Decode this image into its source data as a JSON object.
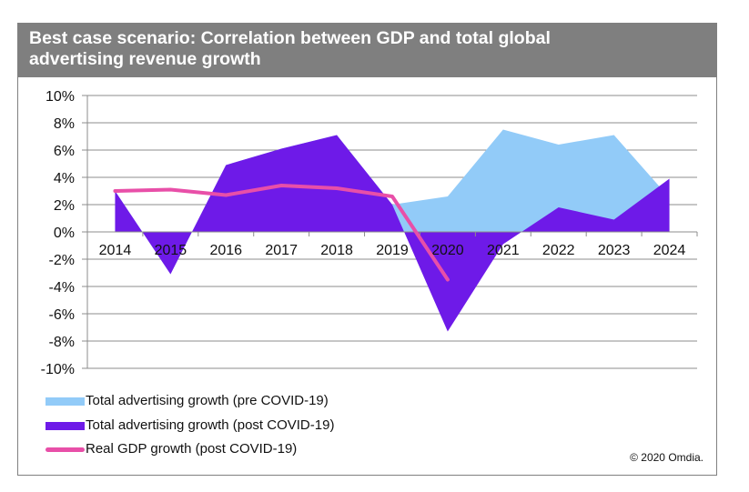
{
  "header": {
    "title_line1": "Best case scenario: Correlation between GDP and total global",
    "title_line2": "advertising revenue growth"
  },
  "copyright": "© 2020 Omdia.",
  "colors": {
    "pre": "#92CBF8",
    "post": "#6E1AE8",
    "gdp": "#E84FA8",
    "grid": "#8c8c8c"
  },
  "chart_data": {
    "type": "area",
    "title": "Best case scenario: Correlation between GDP and total global advertising revenue growth",
    "xlabel": "",
    "ylabel": "",
    "categories": [
      "2014",
      "2015",
      "2016",
      "2017",
      "2018",
      "2019",
      "2020",
      "2021",
      "2022",
      "2023",
      "2024"
    ],
    "yticks": [
      "10%",
      "8%",
      "6%",
      "4%",
      "2%",
      "0%",
      "-2%",
      "-4%",
      "-6%",
      "-8%",
      "-10%"
    ],
    "ylim": [
      -10,
      10
    ],
    "grid": true,
    "legend_position": "bottom-left",
    "series": [
      {
        "name": "Total advertising growth (pre COVID-19)",
        "kind": "area",
        "values": [
          3.0,
          -3.1,
          4.9,
          6.1,
          7.1,
          2.0,
          2.6,
          7.5,
          6.4,
          7.1,
          2.5
        ]
      },
      {
        "name": "Total advertising growth (post COVID-19)",
        "kind": "area",
        "values": [
          3.0,
          -3.1,
          4.9,
          6.1,
          7.1,
          2.0,
          -7.3,
          -0.9,
          1.8,
          0.9,
          3.9
        ]
      },
      {
        "name": "Real GDP growth (post COVID-19)",
        "kind": "line",
        "values": [
          3.0,
          3.1,
          2.7,
          3.4,
          3.2,
          2.6,
          -3.5,
          null,
          null,
          null,
          null
        ]
      }
    ]
  }
}
